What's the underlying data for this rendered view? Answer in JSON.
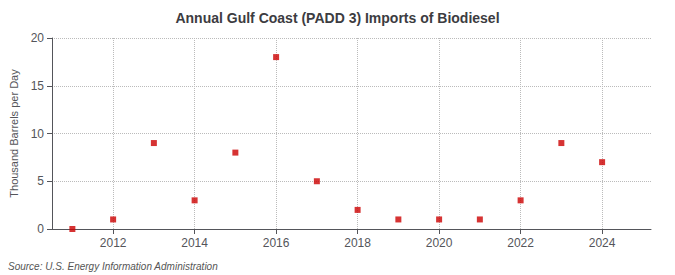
{
  "chart_data": {
    "type": "scatter",
    "title": "Annual Gulf Coast (PADD 3) Imports of Biodiesel",
    "ylabel": "Thousand Barrels per Day",
    "annotations": [
      "Source: U.S. Energy Information Administration"
    ],
    "x": [
      2011,
      2012,
      2013,
      2014,
      2015,
      2016,
      2017,
      2018,
      2019,
      2020,
      2021,
      2022,
      2023,
      2024
    ],
    "values": [
      0,
      1,
      9,
      3,
      8,
      18,
      5,
      2,
      1,
      1,
      1,
      3,
      9,
      7
    ],
    "color": "#cc0000",
    "marker": "square",
    "xlim": [
      2010.5,
      2025.2
    ],
    "xticks": [
      2012,
      2014,
      2016,
      2018,
      2020,
      2022,
      2024
    ],
    "ylim": [
      0,
      20
    ],
    "yticks": [
      0,
      5,
      10,
      15,
      20
    ],
    "grid": true
  }
}
